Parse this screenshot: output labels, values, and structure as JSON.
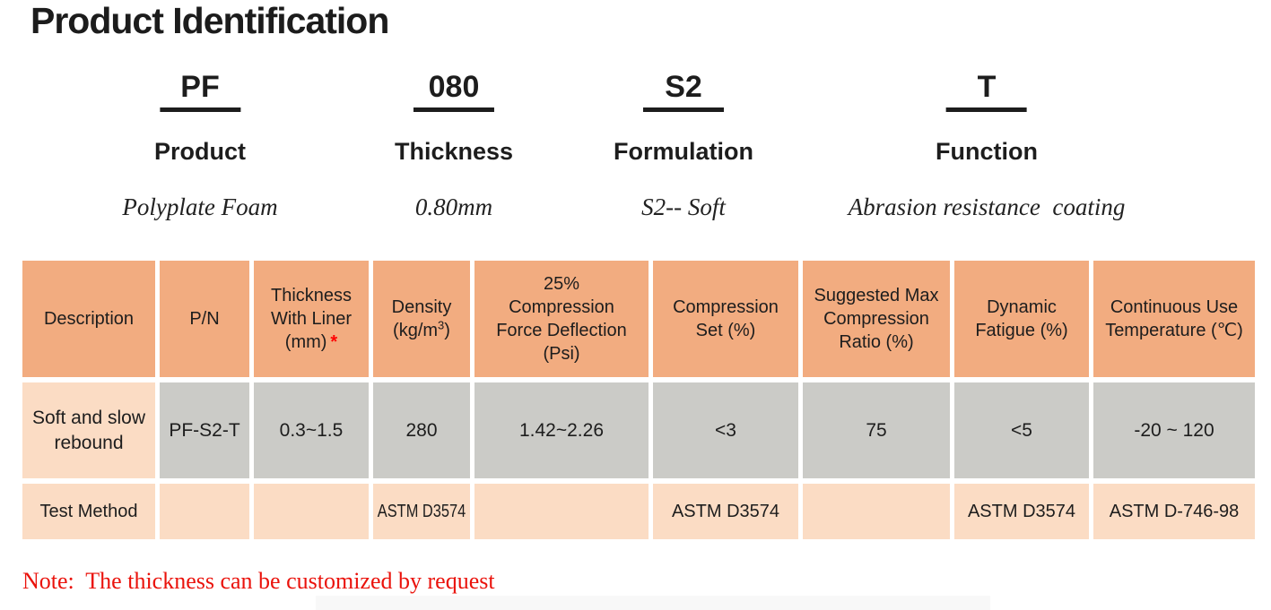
{
  "page": {
    "title": "Product Identification",
    "note": "Note:  The thickness can be customized by request"
  },
  "code_breakdown": {
    "segments": [
      {
        "code": "PF",
        "label": "Product",
        "description": "Polyplate Foam"
      },
      {
        "code": "080",
        "label": "Thickness",
        "description": "0.80mm"
      },
      {
        "code": "S2",
        "label": "Formulation",
        "description": "S2-- Soft"
      },
      {
        "code": "T",
        "label": "Function",
        "description": "Abrasion resistance  coating"
      }
    ]
  },
  "table": {
    "headers": {
      "description": "Description",
      "pn": "P/N",
      "thickness_lines": [
        "Thickness",
        "With Liner",
        "(mm)"
      ],
      "thickness_asterisk": "*",
      "density_line1": "Density",
      "density_pre": "(kg/m",
      "density_sup": "3",
      "density_post": ")",
      "cfd_lines": [
        "25%",
        "Compression",
        "Force Deflection",
        "(Psi)"
      ],
      "compression_set_lines": [
        "Compression",
        "Set (%)"
      ],
      "suggested_max_lines": [
        "Suggested Max",
        "Compression",
        "Ratio (%)"
      ],
      "dynamic_fatigue_lines": [
        "Dynamic",
        "Fatigue (%)"
      ],
      "continuous_use_lines": [
        "Continuous Use",
        "Temperature (℃)"
      ]
    },
    "data_row": {
      "description_lines": [
        "Soft and slow",
        "rebound"
      ],
      "cells": [
        "PF-S2-T",
        "0.3~1.5",
        "280",
        "1.42~2.26",
        "<3",
        "75",
        "<5",
        "-20 ~ 120"
      ]
    },
    "test_row": {
      "label": "Test Method",
      "cells": [
        "",
        "",
        "ASTM D3574",
        "",
        "ASTM D3574",
        "",
        "ASTM D3574",
        "ASTM D-746-98"
      ]
    }
  },
  "colors": {
    "header_bg": "#F2AC80",
    "data_bg": "#CBCBC7",
    "accent_bg": "#FBDCC4",
    "note_red": "#EA120B",
    "asterisk_red": "#FF0000"
  }
}
